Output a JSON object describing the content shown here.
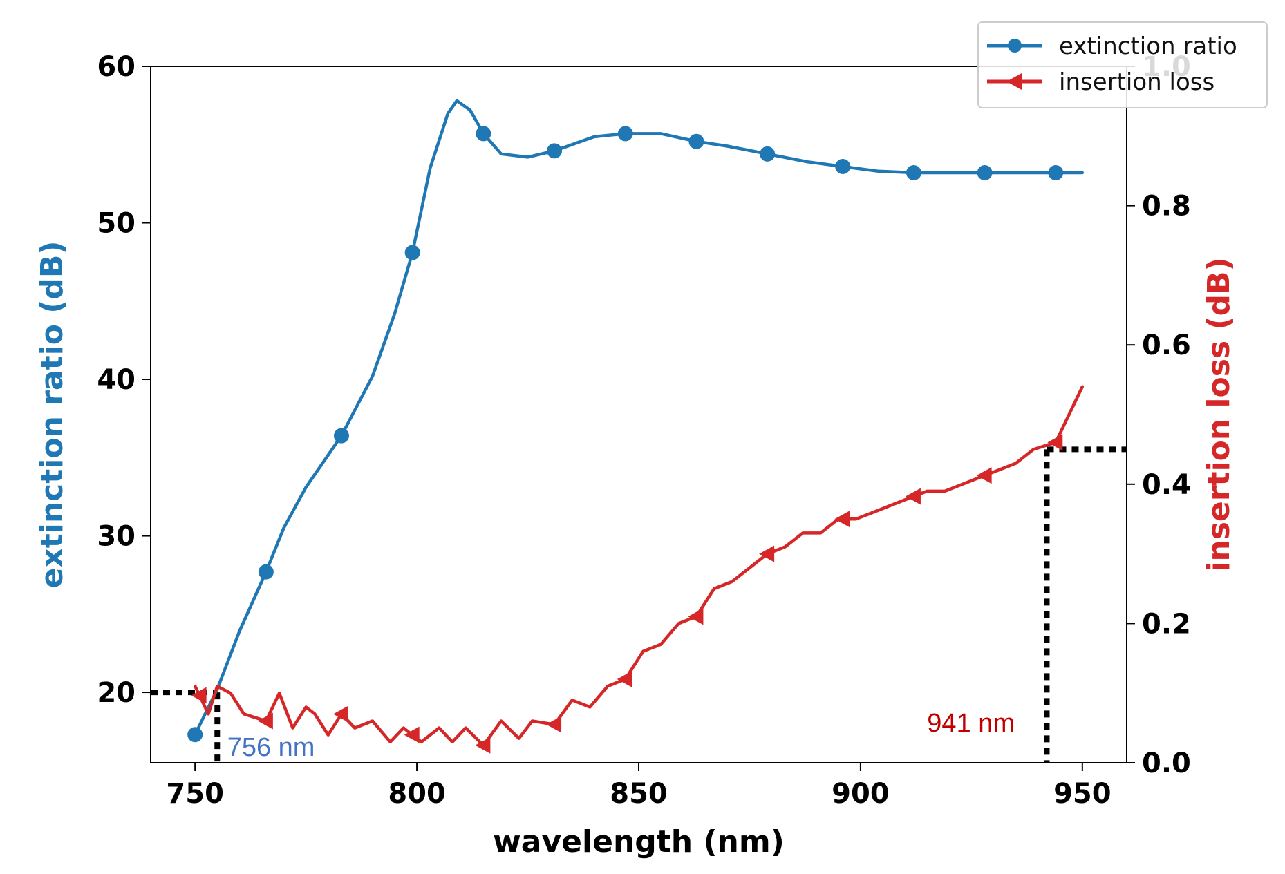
{
  "chart_data": {
    "type": "line",
    "title": "",
    "xlabel": "wavelength (nm)",
    "ylabel_left": "extinction ratio (dB)",
    "ylabel_right": "insertion loss (dB)",
    "xlim": [
      740,
      960
    ],
    "ylim_left": [
      15.5,
      60
    ],
    "ylim_right": [
      0.0,
      1.0
    ],
    "x_ticks": [
      750,
      800,
      850,
      900,
      950
    ],
    "y_left_ticks": [
      20,
      30,
      40,
      50,
      60
    ],
    "y_right_ticks": [
      "0.0",
      "0.2",
      "0.4",
      "0.6",
      "0.8",
      "1.0"
    ],
    "grid": false,
    "legend_position": "top-right",
    "colors": {
      "extinction": "#1f77b4",
      "insertion": "#d62728",
      "annot_left": "#4472c4",
      "annot_right": "#c00000"
    },
    "series": [
      {
        "name": "extinction ratio",
        "axis": "left",
        "marker": "circle",
        "x": [
          750,
          755,
          760,
          766,
          770,
          775,
          783,
          790,
          795,
          799,
          803,
          807,
          809,
          812,
          815,
          819,
          825,
          831,
          840,
          847,
          855,
          863,
          870,
          879,
          888,
          896,
          904,
          912,
          920,
          928,
          936,
          944,
          950
        ],
        "values": [
          17.3,
          20.2,
          23.9,
          27.7,
          30.5,
          33.1,
          36.4,
          40.2,
          44.2,
          48.1,
          53.5,
          57.0,
          57.8,
          57.2,
          55.7,
          54.4,
          54.2,
          54.6,
          55.5,
          55.7,
          55.7,
          55.2,
          54.9,
          54.4,
          53.9,
          53.6,
          53.3,
          53.2,
          53.2,
          53.2,
          53.2,
          53.2,
          53.2
        ],
        "marker_x": [
          750,
          766,
          783,
          799,
          815,
          831,
          847,
          863,
          879,
          896,
          912,
          928,
          944
        ]
      },
      {
        "name": "insertion loss",
        "axis": "right",
        "marker": "triangle-left",
        "x": [
          750,
          753,
          755,
          758,
          761,
          766,
          769,
          772,
          775,
          777,
          780,
          783,
          786,
          790,
          794,
          797,
          801,
          805,
          808,
          811,
          815,
          819,
          823,
          826,
          831,
          835,
          839,
          843,
          847,
          851,
          855,
          859,
          863,
          867,
          871,
          875,
          879,
          883,
          887,
          891,
          895,
          899,
          903,
          907,
          911,
          915,
          919,
          923,
          927,
          931,
          935,
          939,
          944,
          947,
          950
        ],
        "values": [
          0.11,
          0.07,
          0.11,
          0.1,
          0.07,
          0.06,
          0.1,
          0.05,
          0.08,
          0.07,
          0.04,
          0.07,
          0.05,
          0.06,
          0.03,
          0.05,
          0.03,
          0.05,
          0.03,
          0.05,
          0.025,
          0.06,
          0.035,
          0.06,
          0.055,
          0.09,
          0.08,
          0.11,
          0.12,
          0.16,
          0.17,
          0.2,
          0.21,
          0.25,
          0.26,
          0.28,
          0.3,
          0.31,
          0.33,
          0.33,
          0.35,
          0.35,
          0.36,
          0.37,
          0.38,
          0.39,
          0.39,
          0.4,
          0.41,
          0.42,
          0.43,
          0.45,
          0.46,
          0.5,
          0.54
        ],
        "marker_x": [
          751,
          766,
          783,
          799,
          815,
          831,
          847,
          863,
          879,
          896,
          912,
          928,
          944
        ]
      }
    ],
    "annotations": [
      {
        "label": "756 nm",
        "x": 756,
        "color_key": "annot_left"
      },
      {
        "label": "941 nm",
        "x": 941,
        "color_key": "annot_right"
      }
    ],
    "guides": [
      {
        "name": "left-threshold",
        "axis": "left",
        "y_level": 20,
        "x_from": 740,
        "x_to": 755,
        "drop_to": 15.5
      },
      {
        "name": "right-threshold",
        "axis": "right",
        "y_level": 0.45,
        "x_from": 942,
        "x_to": 960,
        "drop_to": 0.0
      }
    ]
  }
}
